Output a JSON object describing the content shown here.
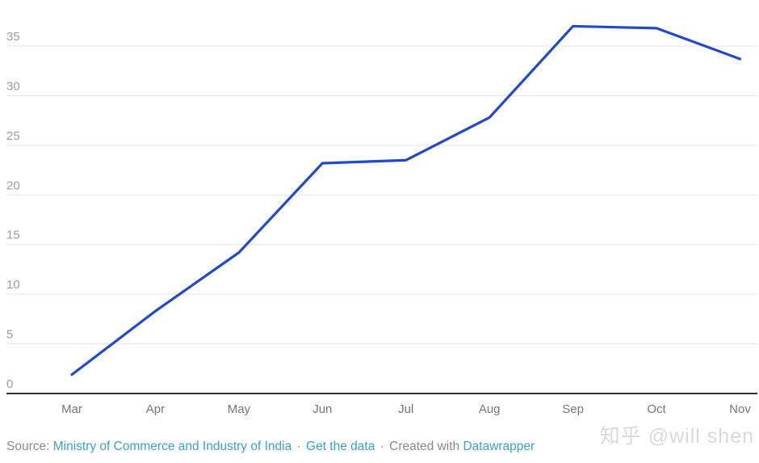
{
  "chart_data": {
    "type": "line",
    "title": "",
    "xlabel": "",
    "ylabel": "",
    "x": [
      "Mar",
      "Apr",
      "May",
      "Jun",
      "Jul",
      "Aug",
      "Sep",
      "Oct",
      "Nov"
    ],
    "series": [
      {
        "name": "value",
        "values": [
          1.9,
          8.3,
          14.2,
          23.2,
          23.5,
          27.8,
          37.0,
          36.8,
          33.7
        ]
      }
    ],
    "ylim": [
      0,
      37.5
    ],
    "yticks": [
      0,
      5,
      10,
      15,
      20,
      25,
      30,
      35
    ],
    "grid": true,
    "legend": "none",
    "line_color": "#2149cb",
    "grid_color": "#e4e4e4",
    "axis_color": "#2e2e2e",
    "ytick_label_color": "#9c9c9c",
    "xtick_label_color": "#757575"
  },
  "footer": {
    "source_label": "Source:",
    "source_link": "Ministry of Commerce and Industry of India",
    "separator": "·",
    "get_data_label": "Get the data",
    "created_with_label": "Created with",
    "datawrapper_label": "Datawrapper",
    "link_color": "#3aa0c8",
    "text_color": "#8a8a8a"
  },
  "watermark": {
    "text": "知乎 @will shen",
    "color": "#d9d9d9"
  }
}
